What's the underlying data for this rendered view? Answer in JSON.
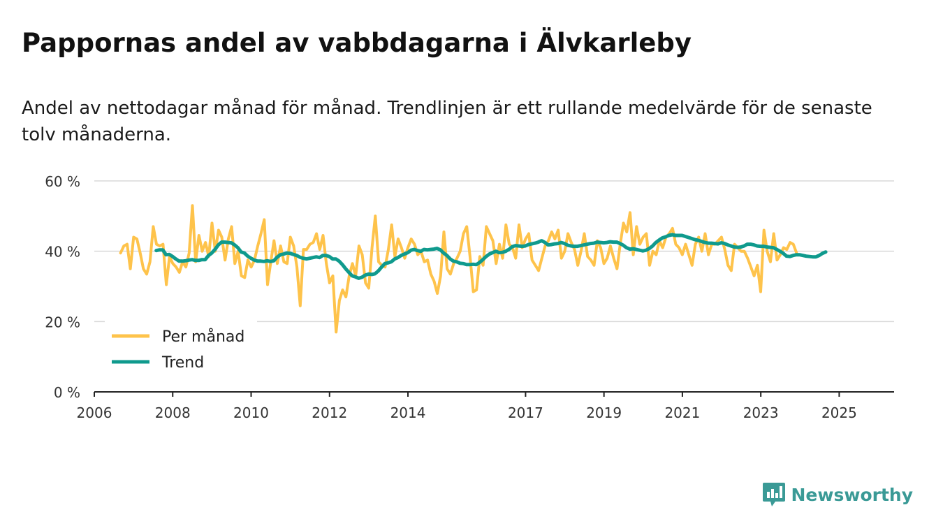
{
  "title": "Pappornas andel av vabbdagarna i Älvkarleby",
  "subtitle": "Andel av nettodagar månad för månad. Trendlinjen är ett rullande medelvärde för de senaste tolv månaderna.",
  "brand": {
    "name": "Newsworthy",
    "color": "#3a9a96",
    "icon": "bar-chart-bubble-icon"
  },
  "colors": {
    "monthly": "#fec34b",
    "trend": "#0f9a8d",
    "grid": "#d8d8d8",
    "axis": "#222222"
  },
  "chart_data": {
    "type": "line",
    "ylabel": "",
    "xlabel": "",
    "ylim": [
      0,
      60
    ],
    "yticks": [
      0,
      20,
      40,
      60
    ],
    "ytick_labels": [
      "0 %",
      "20 %",
      "40 %",
      "60 %"
    ],
    "xlim": [
      2006.0,
      2026.4
    ],
    "xticks": [
      2006,
      2008,
      2010,
      2012,
      2014,
      2017,
      2019,
      2021,
      2023,
      2025
    ],
    "xtick_labels": [
      "2006",
      "2008",
      "2010",
      "2012",
      "2014",
      "2017",
      "2019",
      "2021",
      "2023",
      "2025"
    ],
    "legend": {
      "position": "bottom-left",
      "entries": [
        "Per månad",
        "Trend"
      ]
    },
    "series": [
      {
        "name": "Per månad",
        "x_start": 2006.67,
        "step": 0.0833,
        "values": [
          39.5,
          41.5,
          42,
          35,
          44,
          43.5,
          39.5,
          35,
          33.5,
          37,
          47,
          42,
          41.5,
          42,
          30.5,
          38.5,
          36.5,
          35.5,
          34,
          37,
          35.5,
          39.5,
          53,
          37,
          44.5,
          40,
          42.5,
          38.5,
          48,
          40,
          46,
          44,
          37.5,
          43.5,
          47,
          36.5,
          40,
          33,
          32.5,
          37.5,
          35.5,
          37.5,
          41.5,
          45,
          49,
          30.5,
          37,
          43,
          36.5,
          41.5,
          37,
          36.5,
          44,
          41.5,
          35.5,
          24.5,
          40.5,
          40.5,
          42,
          42.5,
          45,
          40.5,
          44.5,
          36.5,
          31,
          33,
          17,
          26,
          29,
          27,
          33,
          36.5,
          33,
          41.5,
          39,
          31,
          29.5,
          41,
          50,
          37,
          36,
          35.5,
          40.5,
          47.5,
          38.5,
          43.5,
          41,
          38,
          41,
          43.5,
          42,
          39,
          40,
          37,
          37.5,
          33.5,
          31.5,
          28,
          33,
          45.5,
          35,
          33.5,
          36.5,
          38,
          40,
          45,
          47,
          38.5,
          28.5,
          29,
          38.5,
          36,
          47,
          45,
          43,
          36.5,
          42,
          38,
          47.5,
          42,
          41,
          38,
          47.5,
          41,
          43.5,
          45,
          37.5,
          36,
          34.5,
          38,
          41.5,
          43,
          45.5,
          43.5,
          46,
          38,
          40,
          45,
          42.5,
          40.5,
          36,
          40,
          45,
          38.5,
          37.5,
          36,
          43,
          41,
          36.5,
          38,
          41.5,
          38,
          35,
          42,
          48,
          45.5,
          51,
          39,
          47,
          42,
          44,
          45,
          36,
          40,
          39,
          43,
          41,
          44,
          45,
          46.5,
          42,
          41,
          39,
          42,
          39,
          36,
          42,
          44,
          40,
          45,
          39,
          42,
          42,
          43,
          44,
          40.5,
          36,
          34.5,
          42,
          41,
          40,
          40,
          38,
          35.5,
          33,
          36,
          28.5,
          46,
          40,
          37,
          45,
          37.5,
          39,
          41,
          40.5,
          42.5,
          42,
          39.5
        ]
      },
      {
        "name": "Trend",
        "x_start": 2007.58,
        "step": 0.0833,
        "values": [
          40.2,
          40.4,
          40.4,
          39,
          39.1,
          38.5,
          37.8,
          37.2,
          37.2,
          37.3,
          37.5,
          37.6,
          37.4,
          37.4,
          37.6,
          37.6,
          38.8,
          39.5,
          40.5,
          41.8,
          42.6,
          42.6,
          42.5,
          42.4,
          41.8,
          41,
          39.8,
          39.5,
          38.6,
          38,
          37.5,
          37.2,
          37.2,
          37.1,
          37.3,
          37.1,
          37.3,
          38.3,
          39,
          39.2,
          39.5,
          39.4,
          39.1,
          38.8,
          38.3,
          38,
          37.8,
          38,
          38.2,
          38.4,
          38.2,
          38.8,
          38.8,
          38.5,
          37.8,
          37.8,
          37.2,
          36.2,
          35,
          34,
          33,
          32.7,
          32.3,
          32.6,
          33.2,
          33.5,
          33.4,
          33.6,
          34.4,
          35.5,
          36.5,
          36.7,
          37,
          37.8,
          38.2,
          38.8,
          39.2,
          39.6,
          40.3,
          40.5,
          40.2,
          40,
          40.5,
          40.4,
          40.5,
          40.6,
          40.8,
          40.4,
          39.5,
          38.8,
          37.8,
          37.2,
          37,
          36.6,
          36.5,
          36.2,
          36.2,
          36.3,
          36.2,
          36.8,
          37.6,
          38.5,
          39.2,
          39.6,
          40,
          39.6,
          39.7,
          40,
          40.5,
          41.3,
          41.6,
          41.5,
          41.4,
          41.5,
          41.9,
          42.1,
          42.3,
          42.6,
          43,
          42.5,
          41.8,
          41.9,
          42.1,
          42.2,
          42.5,
          42.2,
          41.7,
          41.5,
          41.4,
          41.4,
          41.6,
          41.8,
          42,
          42.2,
          42.3,
          42.6,
          42.5,
          42.4,
          42.5,
          42.7,
          42.6,
          42.6,
          42.2,
          41.7,
          41,
          40.6,
          40.7,
          40.5,
          40.3,
          40.1,
          40.3,
          40.8,
          41.5,
          42.5,
          43.2,
          43.8,
          44.1,
          44.5,
          44.7,
          44.5,
          44.5,
          44.5,
          44.2,
          43.9,
          43.6,
          43.3,
          43.1,
          42.8,
          42.5,
          42.3,
          42.3,
          42.2,
          42.1,
          42.4,
          42.2,
          41.8,
          41.5,
          41.2,
          41.1,
          41.2,
          41.5,
          42,
          42,
          41.8,
          41.5,
          41.4,
          41.4,
          41.2,
          41.1,
          41,
          40.5,
          40,
          39.4,
          38.6,
          38.5,
          38.8,
          39,
          39,
          38.8,
          38.6,
          38.5,
          38.4,
          38.4,
          38.8,
          39.4,
          39.8
        ]
      }
    ]
  }
}
